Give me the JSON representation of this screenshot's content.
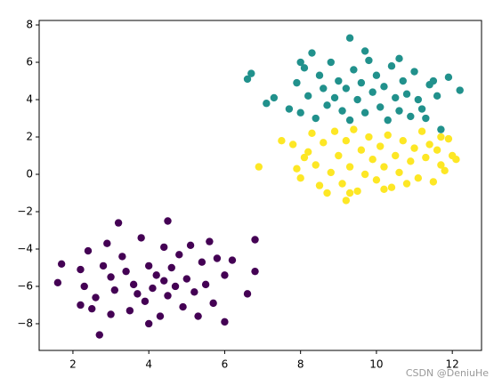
{
  "chart_data": {
    "type": "scatter",
    "xlim": [
      1.11,
      12.77
    ],
    "ylim": [
      -9.43,
      8.24
    ],
    "xticks": [
      2,
      4,
      6,
      8,
      10,
      12
    ],
    "yticks": [
      {
        "value": -8,
        "label": "−8"
      },
      {
        "value": -6,
        "label": "−6"
      },
      {
        "value": -4,
        "label": "−4"
      },
      {
        "value": -2,
        "label": "−2"
      },
      0,
      2,
      4,
      6,
      8
    ],
    "grid": false,
    "watermark": "CSDN @DeniuHe",
    "series": [
      {
        "color": "#440154",
        "x": [
          1.6,
          1.7,
          2.7,
          4.5,
          3.2,
          6.8,
          6.8,
          6.0,
          6.6,
          2.2,
          2.5,
          2.2,
          2.4,
          2.6,
          2.9,
          3.0,
          3.1,
          3.3,
          3.5,
          3.6,
          3.8,
          3.9,
          4.0,
          4.1,
          4.2,
          4.3,
          4.4,
          4.5,
          4.6,
          4.7,
          4.8,
          4.9,
          5.0,
          5.1,
          5.2,
          5.4,
          5.5,
          5.7,
          5.8,
          6.0,
          3.4,
          3.7,
          4.4,
          2.8,
          5.3,
          3.0,
          4.0,
          5.6,
          6.2,
          2.3
        ],
        "values": [
          -5.8,
          -4.8,
          -8.6,
          -2.5,
          -2.6,
          -3.5,
          -5.2,
          -7.9,
          -6.4,
          -7.0,
          -7.2,
          -5.1,
          -4.1,
          -6.6,
          -3.7,
          -5.5,
          -6.2,
          -4.4,
          -7.3,
          -5.9,
          -3.4,
          -6.8,
          -4.9,
          -6.1,
          -5.4,
          -7.6,
          -3.9,
          -6.5,
          -5.0,
          -6.0,
          -4.3,
          -7.1,
          -5.6,
          -3.8,
          -6.3,
          -4.7,
          -5.9,
          -6.9,
          -4.5,
          -5.4,
          -5.2,
          -6.4,
          -5.7,
          -4.9,
          -7.6,
          -7.5,
          -8.0,
          -3.6,
          -4.6,
          -6.0
        ]
      },
      {
        "color": "#21918c",
        "x": [
          6.6,
          6.7,
          7.1,
          7.3,
          9.3,
          8.3,
          12.2,
          11.9,
          11.7,
          11.3,
          7.7,
          7.9,
          8.0,
          8.1,
          8.2,
          8.4,
          8.5,
          8.6,
          8.7,
          8.8,
          8.9,
          9.0,
          9.1,
          9.2,
          9.3,
          9.4,
          9.5,
          9.6,
          9.7,
          9.8,
          9.9,
          10.0,
          10.1,
          10.2,
          10.3,
          10.4,
          10.5,
          10.6,
          10.7,
          10.8,
          10.9,
          11.0,
          11.1,
          11.2,
          11.4,
          11.6,
          8.0,
          9.7,
          10.6,
          11.5
        ],
        "values": [
          5.1,
          5.4,
          3.8,
          4.1,
          7.3,
          6.5,
          4.5,
          5.2,
          2.4,
          3.0,
          3.5,
          4.9,
          3.3,
          5.7,
          4.2,
          3.0,
          5.3,
          4.6,
          3.7,
          6.0,
          4.1,
          5.0,
          3.4,
          4.6,
          2.9,
          5.6,
          4.0,
          4.9,
          3.3,
          6.1,
          4.4,
          5.3,
          3.6,
          4.7,
          2.9,
          5.8,
          4.1,
          3.4,
          5.0,
          4.3,
          3.1,
          5.5,
          4.0,
          3.5,
          4.8,
          4.2,
          6.0,
          6.6,
          6.2,
          5.0
        ]
      },
      {
        "color": "#fde725",
        "x": [
          6.9,
          7.5,
          12.0,
          12.1,
          11.7,
          9.2,
          8.7,
          11.2,
          7.8,
          7.9,
          8.0,
          8.2,
          8.3,
          8.4,
          8.5,
          8.6,
          8.8,
          8.9,
          9.0,
          9.1,
          9.2,
          9.3,
          9.4,
          9.5,
          9.6,
          9.7,
          9.8,
          9.9,
          10.0,
          10.1,
          10.2,
          10.3,
          10.4,
          10.5,
          10.6,
          10.7,
          10.8,
          10.9,
          11.0,
          11.1,
          11.3,
          11.4,
          11.5,
          11.6,
          11.8,
          11.9,
          8.1,
          9.3,
          10.2,
          11.7
        ],
        "values": [
          0.4,
          1.8,
          1.0,
          0.8,
          0.5,
          -1.4,
          -1.0,
          2.3,
          1.6,
          0.3,
          -0.2,
          1.2,
          2.2,
          0.5,
          -0.6,
          1.7,
          0.1,
          2.3,
          1.0,
          -0.5,
          1.8,
          0.4,
          2.4,
          -0.9,
          1.3,
          0.0,
          2.0,
          0.8,
          -0.3,
          1.5,
          0.4,
          2.1,
          -0.7,
          1.0,
          0.1,
          1.8,
          -0.5,
          0.7,
          1.4,
          -0.2,
          0.9,
          1.6,
          -0.4,
          1.3,
          0.2,
          1.9,
          0.9,
          -1.0,
          -0.8,
          2.0
        ]
      }
    ]
  }
}
